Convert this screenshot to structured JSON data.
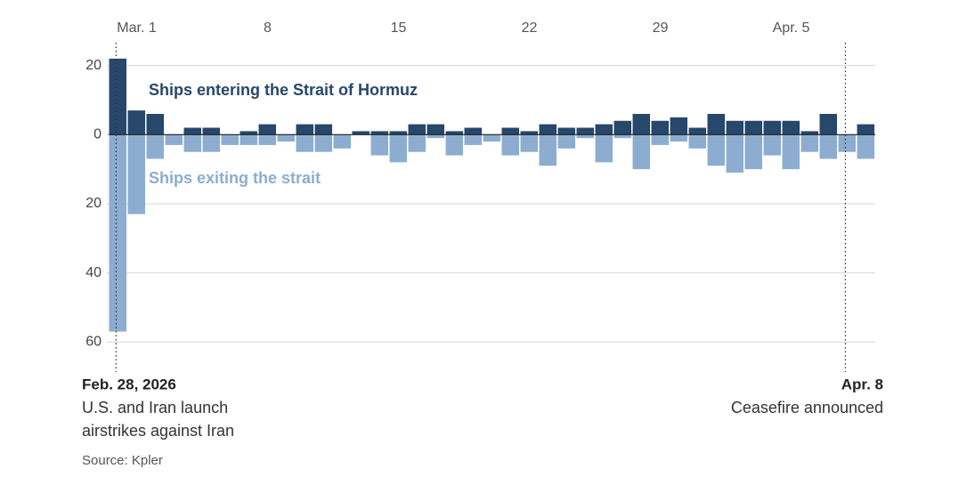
{
  "chart_data": {
    "type": "bar",
    "categories": [
      null,
      "Mar. 1",
      null,
      null,
      null,
      null,
      null,
      null,
      "8",
      null,
      null,
      null,
      null,
      null,
      null,
      "15",
      null,
      null,
      null,
      null,
      null,
      null,
      "22",
      null,
      null,
      null,
      null,
      null,
      null,
      "29",
      null,
      null,
      null,
      null,
      null,
      null,
      "Apr. 5",
      null,
      null,
      null,
      null
    ],
    "series": [
      {
        "name": "Ships entering the Strait of Hormuz",
        "color": "#27476b",
        "values": [
          22,
          7,
          6,
          0,
          2,
          2,
          0,
          1,
          3,
          0,
          3,
          3,
          0,
          1,
          1,
          1,
          3,
          3,
          1,
          2,
          0,
          2,
          1,
          3,
          2,
          2,
          3,
          4,
          6,
          4,
          5,
          2,
          6,
          4,
          4,
          4,
          4,
          1,
          6,
          0,
          3
        ]
      },
      {
        "name": "Ships exiting the strait",
        "color": "#8cadcf",
        "values": [
          -57,
          -23,
          -7,
          -3,
          -5,
          -5,
          -3,
          -3,
          -3,
          -2,
          -5,
          -5,
          -4,
          0,
          -6,
          -8,
          -5,
          -1,
          -6,
          -3,
          -2,
          -6,
          -5,
          -9,
          -4,
          -1,
          -8,
          -1,
          -10,
          -3,
          -2,
          -4,
          -9,
          -11,
          -10,
          -6,
          -10,
          -5,
          -7,
          -5,
          -7
        ]
      }
    ],
    "ylim": [
      -62,
      23
    ],
    "yticks": [
      {
        "value": -60,
        "label": "60"
      },
      {
        "value": -40,
        "label": "40"
      },
      {
        "value": -20,
        "label": "20"
      },
      0,
      20
    ],
    "grid": true,
    "annotations": [
      {
        "title": "Feb. 28, 2026",
        "lines": [
          "U.S. and Iran launch",
          "airstrikes against Iran"
        ]
      },
      {
        "title": "Apr. 8",
        "lines": [
          "Ceasefire announced"
        ]
      }
    ],
    "source": "Source: Kpler"
  }
}
